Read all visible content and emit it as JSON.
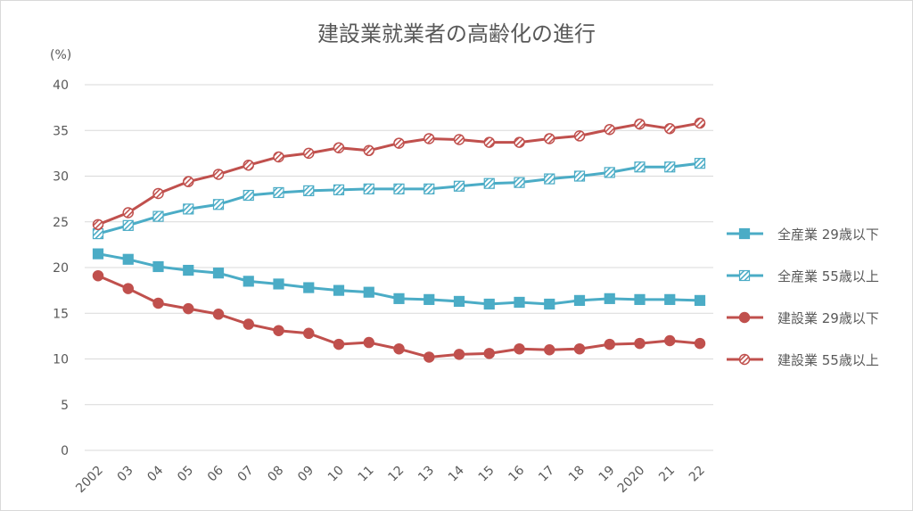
{
  "chart_data": {
    "type": "line",
    "title": "建設業就業者の高齢化の進行",
    "ylabel": "(%)",
    "xlabel": "",
    "ylim": [
      0,
      40
    ],
    "yticks": [
      0,
      5,
      10,
      15,
      20,
      25,
      30,
      35,
      40
    ],
    "grid": true,
    "legend_placement": "right",
    "categories": [
      "2002",
      "03",
      "04",
      "05",
      "06",
      "07",
      "08",
      "09",
      "10",
      "11",
      "12",
      "13",
      "14",
      "15",
      "16",
      "17",
      "18",
      "19",
      "2020",
      "21",
      "22"
    ],
    "series": [
      {
        "name": "全産業 29歳以下",
        "color": "#4BACC6",
        "marker": "square-filled",
        "values": [
          21.5,
          20.9,
          20.1,
          19.7,
          19.4,
          18.5,
          18.2,
          17.8,
          17.5,
          17.3,
          16.6,
          16.5,
          16.3,
          16.0,
          16.2,
          16.0,
          16.4,
          16.6,
          16.5,
          16.5,
          16.4
        ]
      },
      {
        "name": "全産業 55歳以上",
        "color": "#4BACC6",
        "marker": "square-hatched",
        "values": [
          23.7,
          24.6,
          25.6,
          26.4,
          26.9,
          27.9,
          28.2,
          28.4,
          28.5,
          28.6,
          28.6,
          28.6,
          28.9,
          29.2,
          29.3,
          29.7,
          30.0,
          30.4,
          31.0,
          31.0,
          31.4
        ]
      },
      {
        "name": "建設業 29歳以下",
        "color": "#C0504D",
        "marker": "circle-filled",
        "values": [
          19.1,
          17.7,
          16.1,
          15.5,
          14.9,
          13.8,
          13.1,
          12.8,
          11.6,
          11.8,
          11.1,
          10.2,
          10.5,
          10.6,
          11.1,
          11.0,
          11.1,
          11.6,
          11.7,
          12.0,
          11.7
        ]
      },
      {
        "name": "建設業 55歳以上",
        "color": "#C0504D",
        "marker": "circle-hatched",
        "values": [
          24.7,
          26.0,
          28.1,
          29.4,
          30.2,
          31.2,
          32.1,
          32.5,
          33.1,
          32.8,
          33.6,
          34.1,
          34.0,
          33.7,
          33.7,
          34.1,
          34.4,
          35.1,
          35.7,
          35.2,
          35.8
        ]
      }
    ]
  }
}
